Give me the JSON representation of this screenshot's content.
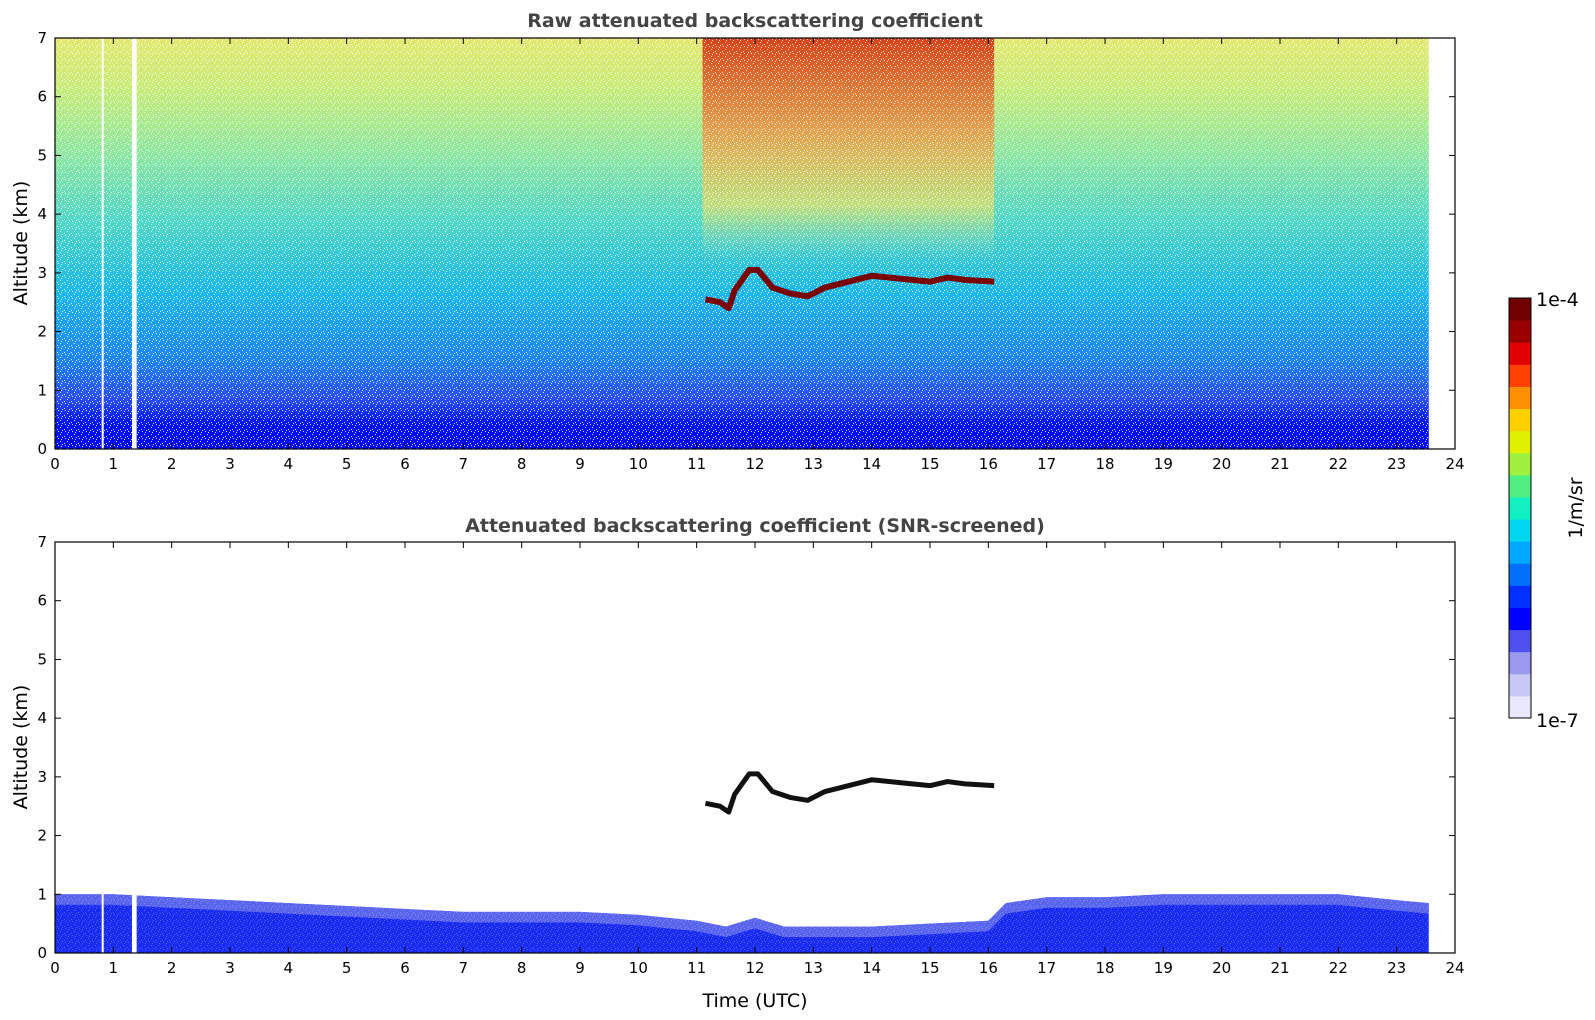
{
  "chart_data": [
    {
      "type": "heatmap",
      "title": "Raw attenuated backscattering coefficient",
      "xlabel": "",
      "ylabel": "Altitude (km)",
      "xlim": [
        0,
        24
      ],
      "ylim": [
        0,
        7
      ],
      "xticks": [
        "0",
        "1",
        "2",
        "3",
        "4",
        "5",
        "6",
        "7",
        "8",
        "9",
        "10",
        "11",
        "12",
        "13",
        "14",
        "15",
        "16",
        "17",
        "18",
        "19",
        "20",
        "21",
        "22",
        "23",
        "24"
      ],
      "yticks": [
        "0",
        "1",
        "2",
        "3",
        "4",
        "5",
        "6",
        "7"
      ],
      "data_end_time": 23.55,
      "data_gaps": [
        [
          0.8,
          0.83
        ],
        [
          1.32,
          1.4
        ]
      ],
      "cloud_layer": {
        "time_range": [
          11.15,
          16.1
        ],
        "altitude_points": [
          [
            11.15,
            2.55
          ],
          [
            11.4,
            2.5
          ],
          [
            11.55,
            2.4
          ],
          [
            11.65,
            2.7
          ],
          [
            11.9,
            3.05
          ],
          [
            12.05,
            3.05
          ],
          [
            12.3,
            2.75
          ],
          [
            12.6,
            2.65
          ],
          [
            12.9,
            2.6
          ],
          [
            13.2,
            2.75
          ],
          [
            13.6,
            2.85
          ],
          [
            14.0,
            2.95
          ],
          [
            14.5,
            2.9
          ],
          [
            15.0,
            2.85
          ],
          [
            15.3,
            2.92
          ],
          [
            15.6,
            2.88
          ],
          [
            16.1,
            2.85
          ]
        ]
      },
      "high_signal_region": {
        "time_range": [
          11.1,
          16.1
        ],
        "altitude_range": [
          3.2,
          7.0
        ]
      }
    },
    {
      "type": "heatmap",
      "title": "Attenuated backscattering coefficient (SNR-screened)",
      "xlabel": "Time (UTC)",
      "ylabel": "Altitude (km)",
      "xlim": [
        0,
        24
      ],
      "ylim": [
        0,
        7
      ],
      "xticks": [
        "0",
        "1",
        "2",
        "3",
        "4",
        "5",
        "6",
        "7",
        "8",
        "9",
        "10",
        "11",
        "12",
        "13",
        "14",
        "15",
        "16",
        "17",
        "18",
        "19",
        "20",
        "21",
        "22",
        "23",
        "24"
      ],
      "yticks": [
        "0",
        "1",
        "2",
        "3",
        "4",
        "5",
        "6",
        "7"
      ],
      "data_end_time": 23.55,
      "data_gaps": [
        [
          0.8,
          0.83
        ],
        [
          1.32,
          1.4
        ]
      ],
      "boundary_layer_top": [
        [
          0,
          1.0
        ],
        [
          1,
          1.0
        ],
        [
          2,
          0.95
        ],
        [
          3,
          0.9
        ],
        [
          4,
          0.85
        ],
        [
          5,
          0.8
        ],
        [
          6,
          0.75
        ],
        [
          7,
          0.7
        ],
        [
          8,
          0.7
        ],
        [
          9,
          0.7
        ],
        [
          10,
          0.65
        ],
        [
          11,
          0.55
        ],
        [
          11.5,
          0.45
        ],
        [
          12,
          0.6
        ],
        [
          12.5,
          0.45
        ],
        [
          13,
          0.45
        ],
        [
          14,
          0.45
        ],
        [
          15,
          0.5
        ],
        [
          16,
          0.55
        ],
        [
          16.3,
          0.85
        ],
        [
          17,
          0.95
        ],
        [
          18,
          0.95
        ],
        [
          19,
          1.0
        ],
        [
          20,
          1.0
        ],
        [
          21,
          1.0
        ],
        [
          22,
          1.0
        ],
        [
          23,
          0.9
        ],
        [
          23.55,
          0.85
        ]
      ],
      "cloud_layer": {
        "time_range": [
          11.15,
          16.1
        ],
        "altitude_points": [
          [
            11.15,
            2.55
          ],
          [
            11.4,
            2.5
          ],
          [
            11.55,
            2.4
          ],
          [
            11.65,
            2.7
          ],
          [
            11.9,
            3.05
          ],
          [
            12.05,
            3.05
          ],
          [
            12.3,
            2.75
          ],
          [
            12.6,
            2.65
          ],
          [
            12.9,
            2.6
          ],
          [
            13.2,
            2.75
          ],
          [
            13.6,
            2.85
          ],
          [
            14.0,
            2.95
          ],
          [
            14.5,
            2.9
          ],
          [
            15.0,
            2.85
          ],
          [
            15.3,
            2.92
          ],
          [
            15.6,
            2.88
          ],
          [
            16.1,
            2.85
          ]
        ]
      }
    }
  ],
  "colorbar": {
    "label": "1/m/sr",
    "min_label": "1e-7",
    "max_label": "1e-4",
    "scale": "log",
    "colors": [
      "#e8e8fa",
      "#c8c8f5",
      "#9a9af0",
      "#5050f0",
      "#0000ff",
      "#0030ff",
      "#0070ff",
      "#00a8ff",
      "#00d8f0",
      "#10f0c0",
      "#50f080",
      "#a0f040",
      "#e0f000",
      "#ffd000",
      "#ff9000",
      "#ff4000",
      "#e00000",
      "#9a0000",
      "#700000"
    ]
  }
}
